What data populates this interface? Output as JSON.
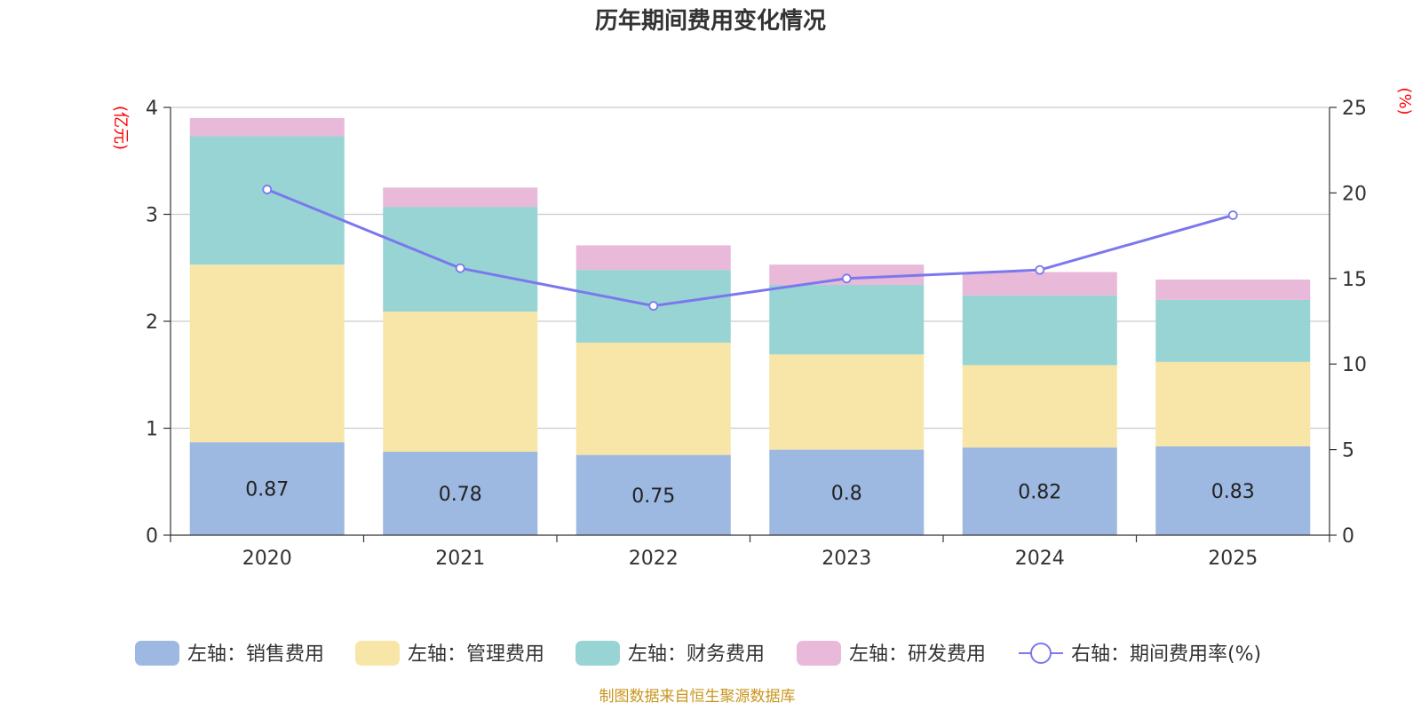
{
  "chart_data": {
    "type": "bar",
    "stacked": true,
    "title": "历年期间费用变化情况",
    "categories": [
      "2020",
      "2021",
      "2022",
      "2023",
      "2024",
      "2025"
    ],
    "left_axis": {
      "unit": "(亿元)",
      "ylim": [
        0,
        4
      ],
      "ticks": [
        "0",
        "1",
        "2",
        "3",
        "4"
      ]
    },
    "right_axis": {
      "unit": "(%)",
      "ylim": [
        0,
        25
      ],
      "ticks": [
        "0",
        "5",
        "10",
        "15",
        "20",
        "25"
      ]
    },
    "series": [
      {
        "name": "左轴：销售费用",
        "axis": "left",
        "color": "#9db8e1",
        "values": [
          0.87,
          0.78,
          0.75,
          0.8,
          0.82,
          0.83
        ]
      },
      {
        "name": "左轴：管理费用",
        "axis": "left",
        "color": "#f7e6a7",
        "values": [
          1.66,
          1.31,
          1.05,
          0.89,
          0.77,
          0.79
        ]
      },
      {
        "name": "左轴：财务费用",
        "axis": "left",
        "color": "#98d4d4",
        "values": [
          1.2,
          0.98,
          0.68,
          0.65,
          0.65,
          0.58
        ]
      },
      {
        "name": "左轴：研发费用",
        "axis": "left",
        "color": "#e8b9d8",
        "values": [
          0.17,
          0.18,
          0.23,
          0.19,
          0.22,
          0.19
        ]
      },
      {
        "name": "右轴：期间费用率(%)",
        "axis": "right",
        "type": "line",
        "color": "#7b78ee",
        "values": [
          20.2,
          15.6,
          13.4,
          15.0,
          15.5,
          18.7
        ]
      }
    ],
    "bar_labels": [
      "0.87",
      "0.78",
      "0.75",
      "0.8",
      "0.82",
      "0.83"
    ],
    "legend_position": "bottom",
    "grid": true
  },
  "footer": {
    "source": "制图数据来自恒生聚源数据库"
  }
}
